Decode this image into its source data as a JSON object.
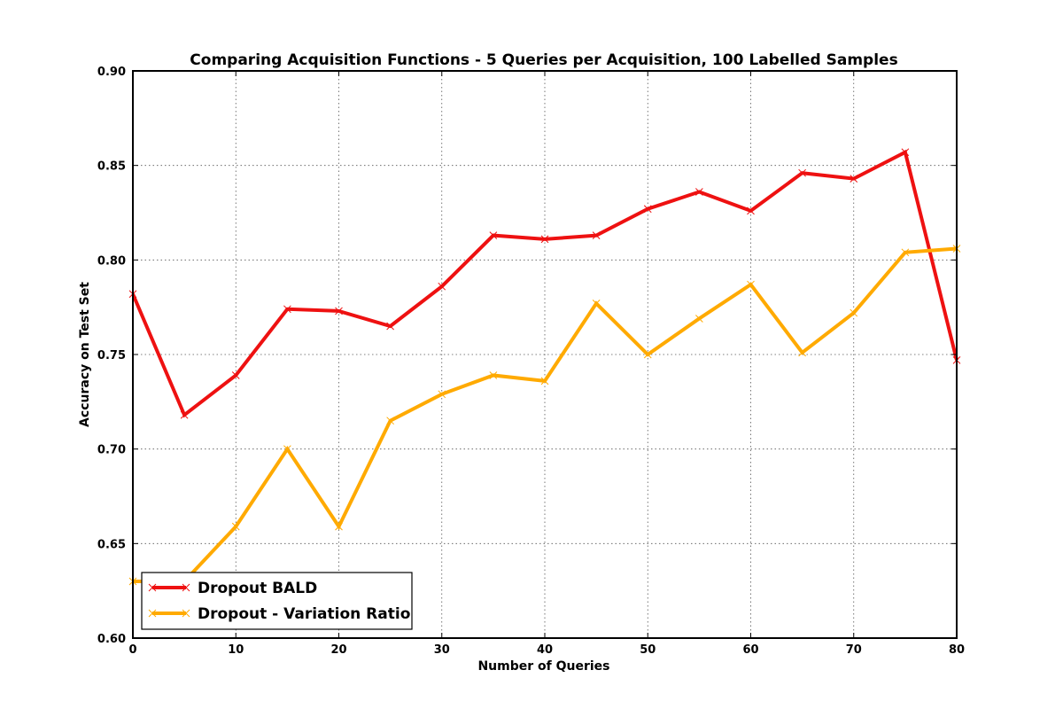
{
  "chart_data": {
    "type": "line",
    "title": "Comparing Acquisition Functions - 5 Queries per Acquisition, 100 Labelled Samples",
    "xlabel": "Number of Queries",
    "ylabel": "Accuracy on Test Set",
    "xlim": [
      0,
      80
    ],
    "ylim": [
      0.6,
      0.9
    ],
    "xticks": [
      "0",
      "10",
      "20",
      "30",
      "40",
      "50",
      "60",
      "70",
      "80"
    ],
    "yticks": [
      "0.60",
      "0.65",
      "0.70",
      "0.75",
      "0.80",
      "0.85",
      "0.90"
    ],
    "grid": true,
    "legend_position": "lower-left",
    "x": [
      0,
      5,
      10,
      15,
      20,
      25,
      30,
      35,
      40,
      45,
      50,
      55,
      60,
      65,
      70,
      75,
      80
    ],
    "series": [
      {
        "name": "Dropout BALD",
        "color": "#ee1111",
        "marker": "x",
        "values": [
          0.782,
          0.718,
          0.739,
          0.774,
          0.773,
          0.765,
          0.786,
          0.813,
          0.811,
          0.813,
          0.827,
          0.836,
          0.826,
          0.846,
          0.843,
          0.857,
          0.747
        ]
      },
      {
        "name": "Dropout - Variation Ratio",
        "color": "#ffaa00",
        "marker": "x",
        "values": [
          0.63,
          0.63,
          0.659,
          0.7,
          0.659,
          0.715,
          0.729,
          0.739,
          0.736,
          0.777,
          0.75,
          0.769,
          0.787,
          0.751,
          0.772,
          0.804,
          0.806
        ]
      }
    ]
  }
}
